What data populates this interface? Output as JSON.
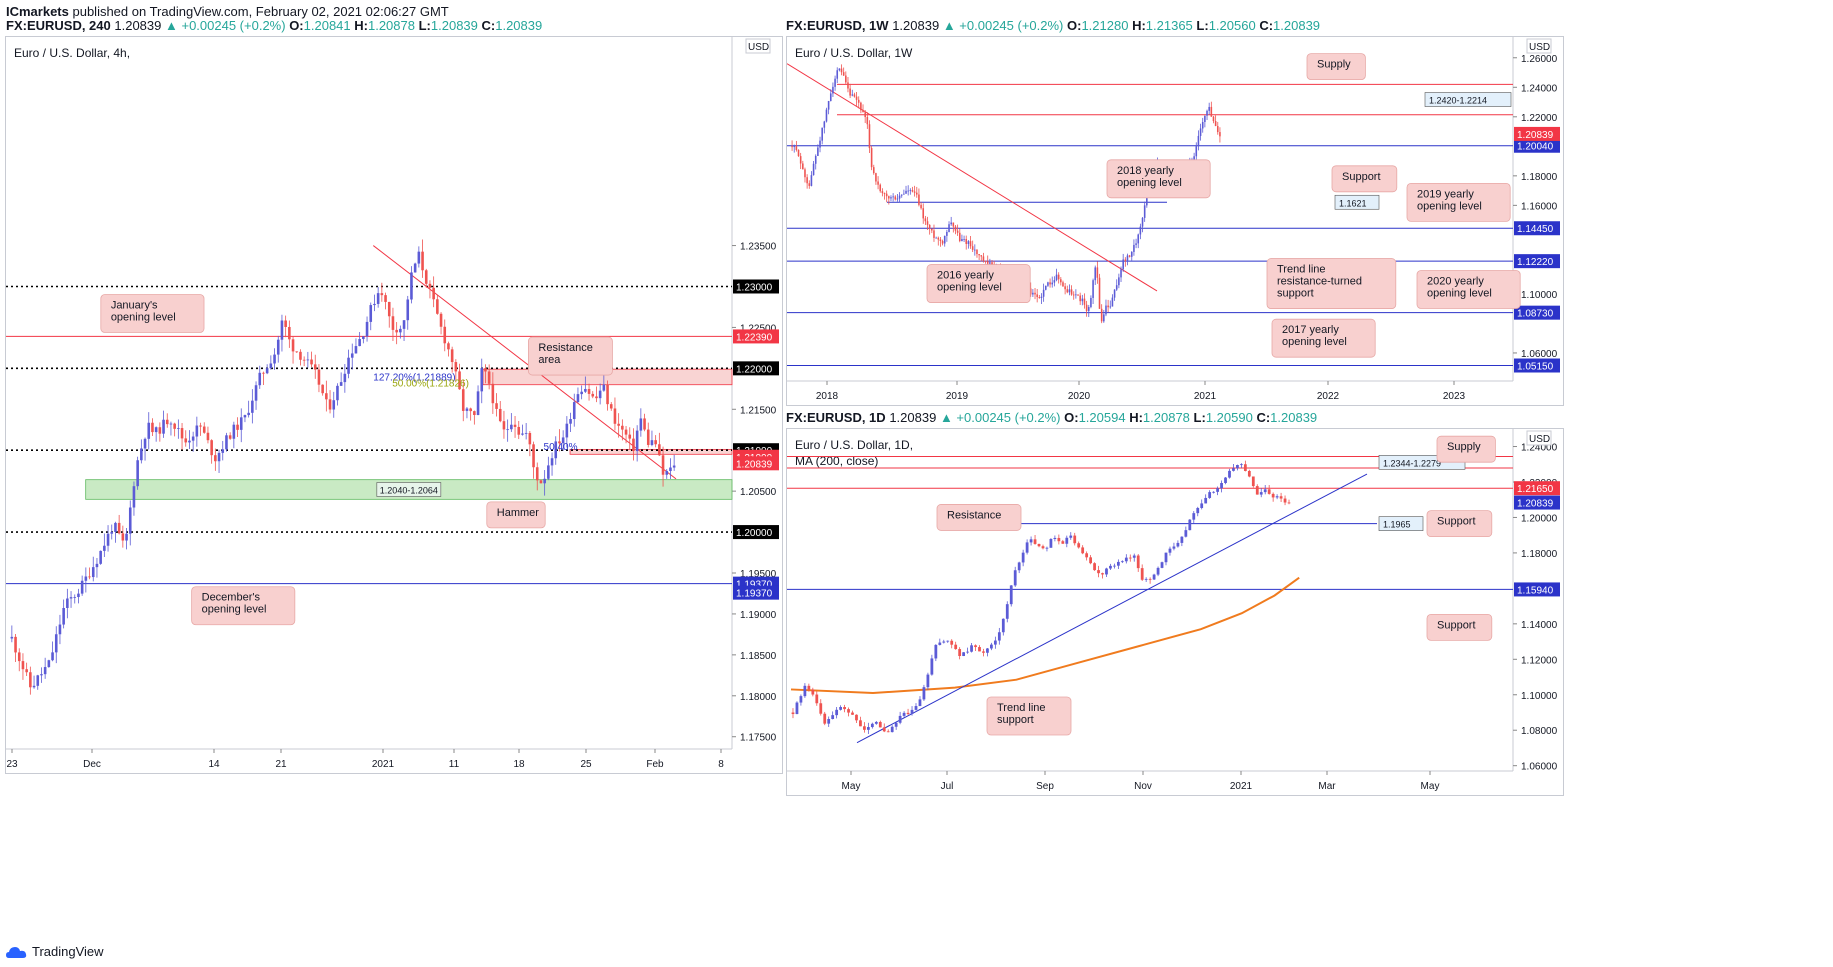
{
  "page": {
    "published_line": {
      "author": "ICmarkets",
      "rest": " published on TradingView.com, February 02, 2021 02:06:27 GMT"
    },
    "footer_logo": "TradingView"
  },
  "colors": {
    "bull": "#5b5bd6",
    "bear": "#ef5350",
    "red_line": "#f23645",
    "blue_line": "#2b33c9",
    "zone_green": "#b7e3b0",
    "zone_pink": "#f7c6c4",
    "note_fill": "#f8d0cf",
    "ma": "#f07b1e"
  },
  "panels": [
    {
      "id": "h4",
      "header": {
        "symbol": "FX:EURUSD, 240",
        "price": "1.20839",
        "change": "+0.00245 (+0.2%)",
        "O": "1.20841",
        "H": "1.20878",
        "L": "1.20839",
        "C": "1.20839"
      },
      "title": "Euro / U.S. Dollar, 4h,",
      "subtitle": "",
      "currency_badge": "USD"
    },
    {
      "id": "w1",
      "header": {
        "symbol": "FX:EURUSD, 1W",
        "price": "1.20839",
        "change": "+0.00245 (+0.2%)",
        "O": "1.21280",
        "H": "1.21365",
        "L": "1.20560",
        "C": "1.20839"
      },
      "title": "Euro / U.S. Dollar, 1W",
      "subtitle": "",
      "currency_badge": "USD"
    },
    {
      "id": "d1",
      "header": {
        "symbol": "FX:EURUSD, 1D",
        "price": "1.20839",
        "change": "+0.00245 (+0.2%)",
        "O": "1.20594",
        "H": "1.20878",
        "L": "1.20590",
        "C": "1.20839"
      },
      "title": "Euro / U.S. Dollar, 1D,",
      "subtitle": "MA (200, close)",
      "currency_badge": "USD"
    }
  ],
  "chart_data": [
    {
      "panel": "h4",
      "type": "candlestick",
      "ylim": [
        1.1735,
        1.2595
      ],
      "y_ticks": [
        "1.17500",
        "1.18000",
        "1.18500",
        "1.19000",
        "1.19500",
        "1.20500",
        "1.21500",
        "1.22500",
        "1.23500"
      ],
      "x_ticks": [
        "23",
        "Dec",
        "14",
        "21",
        "2021",
        "11",
        "18",
        "25",
        "Feb",
        "8"
      ],
      "price_path": [
        [
          0,
          1.187
        ],
        [
          5,
          1.181
        ],
        [
          10,
          1.184
        ],
        [
          14,
          1.191
        ],
        [
          18,
          1.193
        ],
        [
          23,
          1.197
        ],
        [
          27,
          1.201
        ],
        [
          30,
          1.198
        ],
        [
          33,
          1.208
        ],
        [
          36,
          1.213
        ],
        [
          38,
          1.212
        ],
        [
          42,
          1.214
        ],
        [
          46,
          1.211
        ],
        [
          50,
          1.213
        ],
        [
          54,
          1.209
        ],
        [
          58,
          1.212
        ],
        [
          62,
          1.214
        ],
        [
          66,
          1.219
        ],
        [
          70,
          1.222
        ],
        [
          72,
          1.226
        ],
        [
          74,
          1.223
        ],
        [
          78,
          1.221
        ],
        [
          81,
          1.219
        ],
        [
          84,
          1.215
        ],
        [
          87,
          1.218
        ],
        [
          90,
          1.222
        ],
        [
          93,
          1.224
        ],
        [
          96,
          1.228
        ],
        [
          98,
          1.23
        ],
        [
          101,
          1.225
        ],
        [
          104,
          1.225
        ],
        [
          106,
          1.231
        ],
        [
          108,
          1.234
        ],
        [
          110,
          1.231
        ],
        [
          112,
          1.228
        ],
        [
          114,
          1.225
        ],
        [
          117,
          1.221
        ],
        [
          120,
          1.215
        ],
        [
          123,
          1.214
        ],
        [
          125,
          1.22
        ],
        [
          127,
          1.218
        ],
        [
          129,
          1.214
        ],
        [
          131,
          1.212
        ],
        [
          133,
          1.214
        ],
        [
          135,
          1.212
        ],
        [
          137,
          1.212
        ],
        [
          139,
          1.207
        ],
        [
          141,
          1.206
        ],
        [
          143,
          1.209
        ],
        [
          145,
          1.211
        ],
        [
          147,
          1.212
        ],
        [
          150,
          1.217
        ],
        [
          152,
          1.218
        ],
        [
          155,
          1.216
        ],
        [
          157,
          1.218
        ],
        [
          159,
          1.215
        ],
        [
          161,
          1.213
        ],
        [
          163,
          1.212
        ],
        [
          165,
          1.21
        ],
        [
          167,
          1.214
        ],
        [
          169,
          1.211
        ],
        [
          171,
          1.211
        ],
        [
          173,
          1.207
        ],
        [
          175,
          1.2075
        ],
        [
          176,
          1.2084
        ]
      ],
      "hlines": [
        {
          "price": 1.23,
          "style": "dotted",
          "color": "#000000",
          "label": "1.23000"
        },
        {
          "price": 1.2239,
          "style": "solid",
          "color": "#f23645",
          "label": "1.22390"
        },
        {
          "price": 1.22,
          "style": "dotted",
          "color": "#000000",
          "label": "1.22000"
        },
        {
          "price": 1.21,
          "style": "dotted",
          "color": "#000000",
          "label": "1.21000"
        },
        {
          "price": 1.2,
          "style": "dotted",
          "color": "#000000",
          "label": "1.20000"
        },
        {
          "price": 1.1937,
          "style": "solid",
          "color": "#2b33c9",
          "label": "1.19370"
        }
      ],
      "price_tags": [
        {
          "price": 1.2092,
          "label": "1.21000",
          "bg": "#f23645"
        },
        {
          "price": 1.2084,
          "label": "1.20839",
          "bg": "#f23645"
        },
        {
          "price": 1.1926,
          "label": "1.19370",
          "bg": "#2b33c9"
        }
      ],
      "zones": [
        {
          "top": 1.2064,
          "bottom": 1.204,
          "x_from": 20,
          "label": "1.2040-1.2064",
          "kind": "support"
        },
        {
          "top": 1.2199,
          "bottom": 1.218,
          "x_from": 125,
          "kind": "resistance"
        },
        {
          "top": 1.2101,
          "bottom": 1.2095,
          "x_from": 148,
          "kind": "resistance"
        }
      ],
      "fib_labels": [
        {
          "text": "127.20%(1.21889)",
          "price": 1.219,
          "x": 96,
          "color": "#2b33c9"
        },
        {
          "text": "50.00%(1.21826)",
          "price": 1.2183,
          "x": 101,
          "color": "#9aa60f"
        },
        {
          "text": "50.40%",
          "price": 1.2105,
          "x": 141,
          "color": "#2b33c9"
        }
      ],
      "trendline": [
        [
          96,
          1.235
        ],
        [
          176,
          1.2065
        ]
      ],
      "notes": [
        {
          "text": "January's opening level",
          "x": 24,
          "price": 1.2267
        },
        {
          "text": "Resistance area",
          "x": 137,
          "price": 1.2215
        },
        {
          "text": "December's opening level",
          "x": 48,
          "price": 1.191
        },
        {
          "text": "Hammer",
          "x": 126,
          "price": 1.2021
        }
      ]
    },
    {
      "panel": "w1",
      "type": "candlestick",
      "ylim": [
        1.041,
        1.27
      ],
      "y_ticks": [
        "1.26000",
        "1.24000",
        "1.22000",
        "1.18000",
        "1.16000",
        "1.10000",
        "1.06000"
      ],
      "x_ticks": [
        "2018",
        "2019",
        "2020",
        "2021",
        "2022",
        "2023"
      ],
      "price_path": [
        [
          0,
          1.2
        ],
        [
          3,
          1.195
        ],
        [
          5,
          1.182
        ],
        [
          8,
          1.173
        ],
        [
          10,
          1.19
        ],
        [
          14,
          1.213
        ],
        [
          18,
          1.24
        ],
        [
          21,
          1.252
        ],
        [
          23,
          1.248
        ],
        [
          26,
          1.235
        ],
        [
          30,
          1.23
        ],
        [
          34,
          1.215
        ],
        [
          36,
          1.187
        ],
        [
          40,
          1.168
        ],
        [
          44,
          1.165
        ],
        [
          48,
          1.165
        ],
        [
          52,
          1.17
        ],
        [
          56,
          1.168
        ],
        [
          60,
          1.15
        ],
        [
          64,
          1.14
        ],
        [
          68,
          1.135
        ],
        [
          72,
          1.15
        ],
        [
          76,
          1.137
        ],
        [
          80,
          1.135
        ],
        [
          84,
          1.127
        ],
        [
          88,
          1.12
        ],
        [
          92,
          1.12
        ],
        [
          96,
          1.11
        ],
        [
          100,
          1.117
        ],
        [
          104,
          1.112
        ],
        [
          108,
          1.1
        ],
        [
          112,
          1.097
        ],
        [
          116,
          1.107
        ],
        [
          120,
          1.112
        ],
        [
          124,
          1.103
        ],
        [
          128,
          1.1
        ],
        [
          132,
          1.095
        ],
        [
          134,
          1.085
        ],
        [
          138,
          1.122
        ],
        [
          140,
          1.077
        ],
        [
          142,
          1.092
        ],
        [
          144,
          1.09
        ],
        [
          146,
          1.1
        ],
        [
          150,
          1.122
        ],
        [
          154,
          1.127
        ],
        [
          158,
          1.145
        ],
        [
          162,
          1.178
        ],
        [
          166,
          1.188
        ],
        [
          170,
          1.178
        ],
        [
          174,
          1.17
        ],
        [
          178,
          1.185
        ],
        [
          182,
          1.193
        ],
        [
          186,
          1.215
        ],
        [
          189,
          1.227
        ],
        [
          191,
          1.217
        ],
        [
          193,
          1.211
        ],
        [
          194,
          1.2084
        ]
      ],
      "hlines": [
        {
          "price": 1.242,
          "style": "solid",
          "color": "#f23645",
          "label": "",
          "x_from": 50
        },
        {
          "price": 1.2214,
          "style": "solid",
          "color": "#f23645",
          "label": "",
          "x_from": 50
        },
        {
          "price": 1.2004,
          "style": "solid",
          "color": "#2b33c9",
          "label": "1.20040"
        },
        {
          "price": 1.1621,
          "style": "solid",
          "color": "#2b33c9",
          "label": "",
          "x_from": 100,
          "x_to": 380
        },
        {
          "price": 1.1445,
          "style": "solid",
          "color": "#2b33c9",
          "label": "1.14450"
        },
        {
          "price": 1.1222,
          "style": "solid",
          "color": "#2b33c9",
          "label": "1.12220"
        },
        {
          "price": 1.0873,
          "style": "solid",
          "color": "#2b33c9",
          "label": "1.08730"
        },
        {
          "price": 1.0515,
          "style": "solid",
          "color": "#2b33c9",
          "label": "1.05150"
        }
      ],
      "price_tags": [
        {
          "price": 1.2084,
          "label": "1.20839",
          "bg": "#f23645"
        }
      ],
      "zone_labels": [
        {
          "text": "1.2420-1.2214",
          "price": 1.2317
        },
        {
          "text": "1.1621",
          "price": 1.1621
        }
      ],
      "trendline": [
        [
          0,
          1.256
        ],
        [
          370,
          1.102
        ]
      ],
      "notes": [
        {
          "text": "Supply",
          "x": 520,
          "price": 1.254
        },
        {
          "text": "2018 yearly opening level",
          "x": 320,
          "price": 1.178
        },
        {
          "text": "Support",
          "x": 545,
          "price": 1.178
        },
        {
          "text": "2019 yearly opening level",
          "x": 620,
          "price": 1.162
        },
        {
          "text": "2016 yearly opening level",
          "x": 140,
          "price": 1.107
        },
        {
          "text": "Trend line resistance-turned support",
          "x": 480,
          "price": 1.107
        },
        {
          "text": "2020 yearly opening level",
          "x": 630,
          "price": 1.103
        },
        {
          "text": "2017 yearly opening level",
          "x": 485,
          "price": 1.07
        }
      ]
    },
    {
      "panel": "d1",
      "type": "candlestick",
      "ylim": [
        1.057,
        1.2465
      ],
      "y_ticks": [
        "1.24000",
        "1.22000",
        "1.20000",
        "1.18000",
        "1.14000",
        "1.12000",
        "1.10000",
        "1.08000",
        "1.06000"
      ],
      "x_ticks": [
        "May",
        "Jul",
        "Sep",
        "Nov",
        "2021",
        "Mar",
        "May"
      ],
      "price_path": [
        [
          0,
          1.09
        ],
        [
          3,
          1.105
        ],
        [
          5,
          1.1
        ],
        [
          8,
          1.083
        ],
        [
          11,
          1.093
        ],
        [
          14,
          1.09
        ],
        [
          17,
          1.08
        ],
        [
          20,
          1.085
        ],
        [
          23,
          1.078
        ],
        [
          26,
          1.087
        ],
        [
          29,
          1.091
        ],
        [
          31,
          1.095
        ],
        [
          33,
          1.11
        ],
        [
          35,
          1.128
        ],
        [
          38,
          1.131
        ],
        [
          41,
          1.122
        ],
        [
          44,
          1.127
        ],
        [
          47,
          1.124
        ],
        [
          50,
          1.131
        ],
        [
          52,
          1.145
        ],
        [
          54,
          1.165
        ],
        [
          56,
          1.178
        ],
        [
          58,
          1.188
        ],
        [
          60,
          1.185
        ],
        [
          62,
          1.182
        ],
        [
          64,
          1.19
        ],
        [
          66,
          1.184
        ],
        [
          68,
          1.19
        ],
        [
          70,
          1.183
        ],
        [
          72,
          1.178
        ],
        [
          74,
          1.17
        ],
        [
          76,
          1.168
        ],
        [
          78,
          1.172
        ],
        [
          80,
          1.175
        ],
        [
          82,
          1.177
        ],
        [
          84,
          1.178
        ],
        [
          86,
          1.165
        ],
        [
          88,
          1.164
        ],
        [
          90,
          1.172
        ],
        [
          92,
          1.181
        ],
        [
          94,
          1.185
        ],
        [
          96,
          1.19
        ],
        [
          98,
          1.202
        ],
        [
          100,
          1.207
        ],
        [
          102,
          1.213
        ],
        [
          104,
          1.215
        ],
        [
          106,
          1.222
        ],
        [
          108,
          1.227
        ],
        [
          110,
          1.23
        ],
        [
          112,
          1.225
        ],
        [
          114,
          1.213
        ],
        [
          116,
          1.217
        ],
        [
          118,
          1.212
        ],
        [
          120,
          1.21
        ],
        [
          122,
          1.2084
        ]
      ],
      "ma_path": [
        [
          0,
          1.103
        ],
        [
          20,
          1.101
        ],
        [
          40,
          1.104
        ],
        [
          55,
          1.1085
        ],
        [
          70,
          1.118
        ],
        [
          85,
          1.1275
        ],
        [
          100,
          1.137
        ],
        [
          110,
          1.146
        ],
        [
          118,
          1.156
        ],
        [
          124,
          1.166
        ]
      ],
      "hlines": [
        {
          "price": 1.2344,
          "style": "solid",
          "color": "#f23645",
          "label": ""
        },
        {
          "price": 1.2279,
          "style": "solid",
          "color": "#f23645",
          "label": ""
        },
        {
          "price": 1.2165,
          "style": "solid",
          "color": "#f23645",
          "label": "1.21650"
        },
        {
          "price": 1.1965,
          "style": "solid",
          "color": "#2b33c9",
          "label": "",
          "x_from": 230,
          "x_to": 590
        },
        {
          "price": 1.1594,
          "style": "solid",
          "color": "#2b33c9",
          "label": "1.15940"
        }
      ],
      "price_tags": [
        {
          "price": 1.2084,
          "label": "1.20839",
          "bg": "#2b33c9"
        }
      ],
      "zone_labels": [
        {
          "text": "1.2344-1.2279",
          "price": 1.2311
        },
        {
          "text": "1.1965",
          "price": 1.1965
        }
      ],
      "trendline": [
        [
          70,
          1.073
        ],
        [
          580,
          1.2245
        ]
      ],
      "notes": [
        {
          "text": "Supply",
          "x": 650,
          "price": 1.2385
        },
        {
          "text": "Resistance",
          "x": 150,
          "price": 1.2
        },
        {
          "text": "Support",
          "x": 640,
          "price": 1.1965
        },
        {
          "text": "Support",
          "x": 640,
          "price": 1.138
        },
        {
          "text": "Trend line support",
          "x": 200,
          "price": 1.088
        }
      ]
    }
  ]
}
